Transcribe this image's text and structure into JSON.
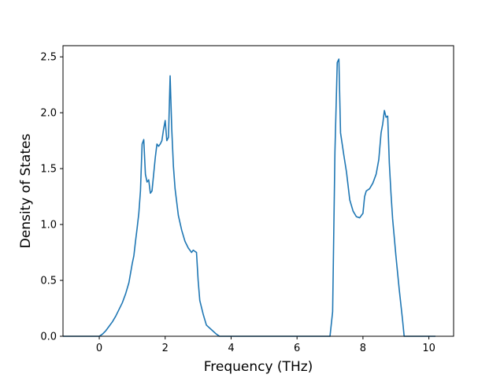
{
  "chart_data": {
    "type": "line",
    "title": "",
    "xlabel": "Frequency (THz)",
    "ylabel": "Density of States",
    "xlim": [
      -1.1,
      10.75
    ],
    "ylim": [
      0,
      2.6
    ],
    "xticks": [
      0,
      2,
      4,
      6,
      8,
      10
    ],
    "xtick_labels": [
      "0",
      "2",
      "4",
      "6",
      "8",
      "10"
    ],
    "yticks": [
      0.0,
      0.5,
      1.0,
      1.5,
      2.0,
      2.5
    ],
    "ytick_labels": [
      "0.0",
      "0.5",
      "1.0",
      "1.5",
      "2.0",
      "2.5"
    ],
    "grid": false,
    "legend": "none",
    "series": [
      {
        "color": "#1f77b4",
        "x": [
          -1.1,
          -0.5,
          0.0,
          0.1,
          0.2,
          0.3,
          0.4,
          0.5,
          0.6,
          0.7,
          0.8,
          0.9,
          1.0,
          1.05,
          1.1,
          1.15,
          1.2,
          1.25,
          1.3,
          1.35,
          1.4,
          1.45,
          1.5,
          1.55,
          1.6,
          1.7,
          1.75,
          1.8,
          1.85,
          1.9,
          1.95,
          2.0,
          2.05,
          2.1,
          2.15,
          2.2,
          2.25,
          2.3,
          2.35,
          2.4,
          2.5,
          2.6,
          2.7,
          2.8,
          2.85,
          2.9,
          2.95,
          3.0,
          3.05,
          3.15,
          3.25,
          3.4,
          3.55,
          3.65,
          4.0,
          6.0,
          7.0,
          7.08,
          7.15,
          7.22,
          7.27,
          7.32,
          7.37,
          7.42,
          7.5,
          7.6,
          7.7,
          7.8,
          7.9,
          8.0,
          8.05,
          8.1,
          8.2,
          8.3,
          8.4,
          8.48,
          8.55,
          8.6,
          8.65,
          8.7,
          8.75,
          8.8,
          8.85,
          8.9,
          9.0,
          9.1,
          9.2,
          9.25,
          9.4,
          10.0,
          10.2
        ],
        "y": [
          0.0,
          0.0,
          0.0,
          0.02,
          0.05,
          0.09,
          0.13,
          0.18,
          0.24,
          0.3,
          0.38,
          0.48,
          0.65,
          0.72,
          0.85,
          0.97,
          1.1,
          1.3,
          1.72,
          1.76,
          1.45,
          1.38,
          1.4,
          1.28,
          1.3,
          1.6,
          1.72,
          1.7,
          1.72,
          1.75,
          1.85,
          1.93,
          1.75,
          1.78,
          2.33,
          1.85,
          1.52,
          1.32,
          1.2,
          1.08,
          0.95,
          0.85,
          0.79,
          0.75,
          0.77,
          0.76,
          0.75,
          0.5,
          0.32,
          0.2,
          0.1,
          0.06,
          0.02,
          0.0,
          0.0,
          0.0,
          0.0,
          0.22,
          1.65,
          2.45,
          2.48,
          1.82,
          1.72,
          1.62,
          1.47,
          1.22,
          1.12,
          1.07,
          1.06,
          1.1,
          1.25,
          1.3,
          1.32,
          1.37,
          1.45,
          1.58,
          1.82,
          1.9,
          2.02,
          1.96,
          1.97,
          1.55,
          1.28,
          1.05,
          0.72,
          0.42,
          0.15,
          0.0,
          0.0,
          0.0,
          0.0
        ]
      }
    ]
  }
}
